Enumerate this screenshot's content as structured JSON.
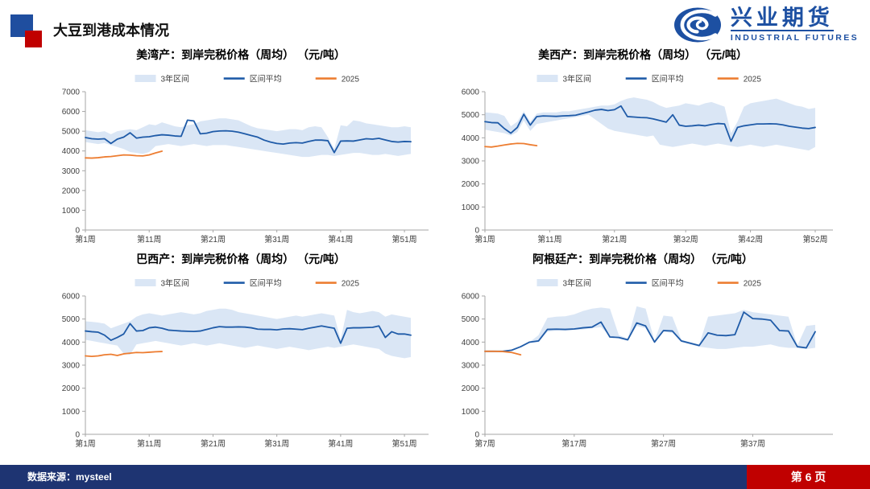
{
  "header": {
    "title": "大豆到港成本情况"
  },
  "logo": {
    "name_cn": "兴业期货",
    "name_en": "INDUSTRIAL FUTURES",
    "color": "#1D50A2",
    "icon": "swirl-logo-icon"
  },
  "footer": {
    "source": "数据来源：mysteel",
    "page": "第 6 页",
    "bar_color": "#1E3472",
    "page_box_color": "#C00000"
  },
  "colors": {
    "band_fill": "#DAE6F5",
    "mean_line": "#1F5BA8",
    "line_2025": "#ED7D31",
    "axis": "#A6A6A6",
    "tick_text": "#404040",
    "title_text": "#000000"
  },
  "chart_data": [
    {
      "type": "line",
      "title": "美湾产：到岸完税价格（周均） （元/吨）",
      "ylim": [
        0,
        7000
      ],
      "ytick_step": 1000,
      "grid": false,
      "legend_position": "top",
      "week_start": 1,
      "xtick_weeks": [
        1,
        11,
        21,
        31,
        41,
        51
      ],
      "xtick_labels": [
        "第1周",
        "第11周",
        "第21周",
        "第31周",
        "第41周",
        "第51周"
      ],
      "series": [
        {
          "name": "3年区间",
          "type": "band",
          "color": "#DAE6F5",
          "upper": [
            5050,
            5000,
            4950,
            5000,
            4850,
            5000,
            5050,
            5100,
            5050,
            5200,
            5350,
            5300,
            5450,
            5350,
            5250,
            5200,
            5300,
            5350,
            5500,
            5550,
            5600,
            5650,
            5650,
            5600,
            5550,
            5400,
            5250,
            5150,
            5100,
            5050,
            5000,
            5050,
            5100,
            5100,
            5050,
            5200,
            5250,
            5200,
            4700,
            4100,
            5300,
            5250,
            5550,
            5500,
            5400,
            5350,
            5300,
            5250,
            5200,
            5200,
            5250,
            5200
          ],
          "lower": [
            4450,
            4400,
            4350,
            4400,
            4300,
            4200,
            4100,
            3950,
            3900,
            3850,
            3950,
            4250,
            4300,
            4350,
            4300,
            4250,
            4300,
            4350,
            4300,
            4250,
            4300,
            4300,
            4300,
            4250,
            4200,
            4150,
            4100,
            4050,
            4000,
            3950,
            3900,
            3850,
            3800,
            3750,
            3700,
            3700,
            3750,
            3800,
            3800,
            3750,
            3800,
            3850,
            3900,
            3900,
            3850,
            3800,
            3800,
            3850,
            3800,
            3750,
            3800,
            3850
          ]
        },
        {
          "name": "区间平均",
          "type": "line",
          "color": "#1F5BA8",
          "values": [
            4680,
            4620,
            4600,
            4620,
            4380,
            4600,
            4700,
            4920,
            4650,
            4700,
            4720,
            4780,
            4820,
            4800,
            4760,
            4740,
            5560,
            5520,
            4870,
            4900,
            4980,
            5010,
            5020,
            5000,
            4950,
            4870,
            4780,
            4700,
            4550,
            4450,
            4380,
            4350,
            4400,
            4420,
            4400,
            4480,
            4550,
            4550,
            4520,
            3920,
            4500,
            4510,
            4500,
            4560,
            4620,
            4600,
            4640,
            4560,
            4480,
            4450,
            4480,
            4470
          ]
        },
        {
          "name": "2025",
          "type": "line",
          "color": "#ED7D31",
          "values": [
            3650,
            3640,
            3660,
            3700,
            3720,
            3760,
            3800,
            3790,
            3760,
            3750,
            3800,
            3900,
            3990
          ]
        }
      ]
    },
    {
      "type": "line",
      "title": "美西产：到岸完税价格（周均） （元/吨）",
      "ylim": [
        0,
        6000
      ],
      "ytick_step": 1000,
      "grid": false,
      "legend_position": "top",
      "week_start": 1,
      "xtick_weeks": [
        1,
        11,
        21,
        32,
        42,
        52
      ],
      "xtick_labels": [
        "第1周",
        "第11周",
        "第21周",
        "第32周",
        "第42周",
        "第52周"
      ],
      "series": [
        {
          "name": "3年区间",
          "type": "band",
          "color": "#DAE6F5",
          "upper": [
            5100,
            5080,
            5050,
            4950,
            4500,
            4700,
            5150,
            4700,
            5050,
            5100,
            5100,
            5100,
            5150,
            5150,
            5200,
            5250,
            5300,
            5350,
            5400,
            5400,
            5450,
            5600,
            5700,
            5750,
            5700,
            5650,
            5550,
            5400,
            5300,
            5350,
            5400,
            5500,
            5450,
            5400,
            5500,
            5550,
            5450,
            5350,
            4200,
            4700,
            5350,
            5500,
            5550,
            5600,
            5650,
            5700,
            5600,
            5500,
            5400,
            5350,
            5250,
            5300
          ],
          "lower": [
            4350,
            4300,
            4250,
            4200,
            4100,
            4250,
            4750,
            4300,
            4600,
            4650,
            4700,
            4750,
            4800,
            4850,
            4900,
            4950,
            5000,
            4800,
            4600,
            4400,
            4300,
            4250,
            4200,
            4150,
            4100,
            4050,
            4100,
            3700,
            3650,
            3600,
            3650,
            3700,
            3750,
            3700,
            3650,
            3700,
            3750,
            3700,
            3650,
            3600,
            3650,
            3700,
            3650,
            3600,
            3650,
            3700,
            3650,
            3600,
            3550,
            3500,
            3450,
            3600
          ]
        },
        {
          "name": "区间平均",
          "type": "line",
          "color": "#1F5BA8",
          "values": [
            4700,
            4660,
            4650,
            4400,
            4200,
            4450,
            5020,
            4550,
            4920,
            4950,
            4940,
            4930,
            4950,
            4960,
            4980,
            5050,
            5120,
            5200,
            5230,
            5180,
            5220,
            5380,
            4920,
            4900,
            4880,
            4870,
            4820,
            4750,
            4680,
            5000,
            4550,
            4500,
            4520,
            4550,
            4520,
            4580,
            4620,
            4600,
            3850,
            4450,
            4520,
            4560,
            4600,
            4600,
            4610,
            4600,
            4560,
            4500,
            4460,
            4420,
            4400,
            4450
          ]
        },
        {
          "name": "2025",
          "type": "line",
          "color": "#ED7D31",
          "values": [
            3620,
            3600,
            3640,
            3690,
            3730,
            3760,
            3750,
            3700,
            3660
          ]
        }
      ]
    },
    {
      "type": "line",
      "title": "巴西产：到岸完税价格（周均） （元/吨）",
      "ylim": [
        0,
        6000
      ],
      "ytick_step": 1000,
      "grid": false,
      "legend_position": "top",
      "week_start": 1,
      "xtick_weeks": [
        1,
        11,
        21,
        31,
        41,
        51
      ],
      "xtick_labels": [
        "第1周",
        "第11周",
        "第21周",
        "第31周",
        "第41周",
        "第51周"
      ],
      "series": [
        {
          "name": "3年区间",
          "type": "band",
          "color": "#DAE6F5",
          "upper": [
            4900,
            4880,
            4850,
            4800,
            4600,
            4700,
            4800,
            4900,
            5100,
            5200,
            5250,
            5200,
            5150,
            5200,
            5250,
            5300,
            5250,
            5200,
            5250,
            5350,
            5400,
            5450,
            5450,
            5400,
            5300,
            5250,
            5200,
            5150,
            5100,
            5050,
            5000,
            5050,
            5100,
            5150,
            5100,
            5150,
            5200,
            5250,
            5200,
            5150,
            4100,
            5400,
            5300,
            5250,
            5300,
            5350,
            5300,
            5100,
            5200,
            5150,
            5100,
            5050
          ],
          "lower": [
            4100,
            4050,
            4000,
            3950,
            3900,
            3850,
            3500,
            3450,
            3900,
            3950,
            4000,
            4050,
            4000,
            3950,
            3900,
            3850,
            3900,
            3950,
            3900,
            3850,
            3900,
            3950,
            3900,
            3850,
            3800,
            3750,
            3800,
            3850,
            3800,
            3750,
            3700,
            3750,
            3800,
            3750,
            3700,
            3650,
            3700,
            3750,
            3800,
            3750,
            3800,
            3850,
            3900,
            3850,
            3800,
            3750,
            3700,
            3500,
            3400,
            3350,
            3300,
            3350
          ]
        },
        {
          "name": "区间平均",
          "type": "line",
          "color": "#1F5BA8",
          "values": [
            4480,
            4450,
            4430,
            4300,
            4080,
            4200,
            4350,
            4800,
            4480,
            4500,
            4620,
            4650,
            4600,
            4520,
            4500,
            4480,
            4470,
            4460,
            4480,
            4550,
            4620,
            4670,
            4650,
            4650,
            4660,
            4650,
            4620,
            4560,
            4550,
            4550,
            4530,
            4570,
            4580,
            4560,
            4540,
            4600,
            4650,
            4700,
            4650,
            4600,
            3950,
            4600,
            4620,
            4620,
            4630,
            4640,
            4700,
            4200,
            4450,
            4350,
            4350,
            4300
          ]
        },
        {
          "name": "2025",
          "type": "line",
          "color": "#ED7D31",
          "values": [
            3400,
            3380,
            3400,
            3450,
            3470,
            3420,
            3490,
            3520,
            3550,
            3540,
            3560,
            3580,
            3590
          ]
        }
      ]
    },
    {
      "type": "line",
      "title": "阿根廷产：到岸完税价格（周均） （元/吨）",
      "ylim": [
        0,
        6000
      ],
      "ytick_step": 1000,
      "grid": false,
      "legend_position": "top",
      "week_start": 7,
      "xtick_weeks": [
        7,
        17,
        27,
        37
      ],
      "xtick_labels": [
        "第7周",
        "第17周",
        "第27周",
        "第37周"
      ],
      "series": [
        {
          "name": "3年区间",
          "type": "band",
          "color": "#DAE6F5",
          "upper": [
            null,
            null,
            null,
            null,
            null,
            4000,
            4300,
            5050,
            5100,
            5120,
            5200,
            5350,
            5450,
            5500,
            5450,
            4300,
            4150,
            5550,
            5450,
            4050,
            5150,
            5100,
            4100,
            4000,
            3900,
            5100,
            5150,
            5200,
            5250,
            5400,
            5300,
            5250,
            5200,
            5150,
            5100,
            3850,
            4700,
            4750
          ],
          "lower": [
            null,
            null,
            null,
            null,
            null,
            3950,
            4000,
            4450,
            4500,
            4500,
            4520,
            4550,
            4600,
            4650,
            4250,
            4150,
            4050,
            4700,
            4600,
            3950,
            4450,
            4400,
            4000,
            3900,
            3800,
            3750,
            3700,
            3700,
            3750,
            3800,
            3800,
            3850,
            3900,
            3800,
            3750,
            3750,
            3700,
            3750
          ]
        },
        {
          "name": "区间平均",
          "type": "line",
          "color": "#1F5BA8",
          "values": [
            3600,
            3600,
            3600,
            3650,
            3800,
            4000,
            4050,
            4550,
            4560,
            4550,
            4570,
            4620,
            4650,
            4870,
            4220,
            4200,
            4100,
            4830,
            4700,
            4000,
            4500,
            4480,
            4050,
            3950,
            3850,
            4400,
            4300,
            4280,
            4320,
            5300,
            5020,
            5000,
            4950,
            4500,
            4480,
            3800,
            3750,
            4450
          ]
        },
        {
          "name": "2025",
          "type": "line",
          "color": "#ED7D31",
          "values": [
            3600,
            3600,
            3590,
            3550,
            3450
          ]
        }
      ]
    }
  ]
}
